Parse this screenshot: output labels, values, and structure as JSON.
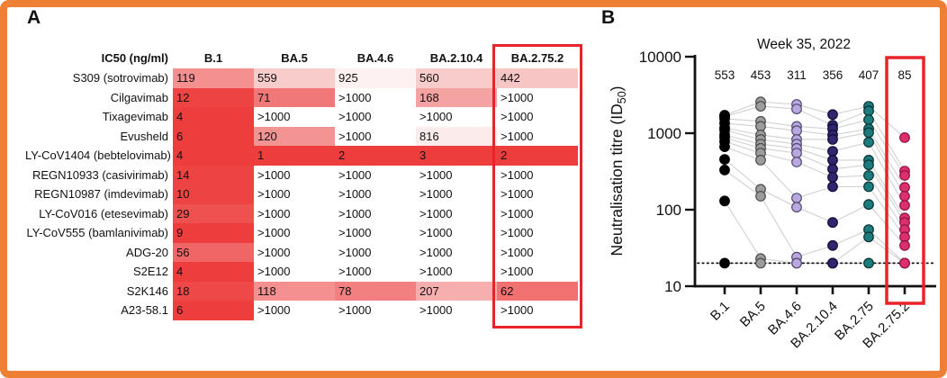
{
  "figure": {
    "panel_a_label": "A",
    "panel_b_label": "B",
    "border_color": "#ed8034",
    "highlight_color": "#e8232a"
  },
  "table": {
    "header_label": "IC50 (ng/ml)",
    "columns": [
      "B.1",
      "BA.5",
      "BA.4.6",
      "BA.2.10.4",
      "BA.2.75.2"
    ],
    "highlighted_column": "BA.2.75.2",
    "heat_scale": {
      "low_color": "#ee3d3d",
      "high_color": "#ffffff",
      "low_value": 1,
      "high_value": 1000
    },
    "rows": [
      {
        "label": "S309 (sotrovimab)",
        "cells": [
          {
            "v": "119",
            "c": "#f49090"
          },
          {
            "v": "559",
            "c": "#f9cccc"
          },
          {
            "v": "925",
            "c": "#fdf1f1"
          },
          {
            "v": "560",
            "c": "#f9cccc"
          },
          {
            "v": "442",
            "c": "#f8c5c5"
          }
        ]
      },
      {
        "label": "Cilgavimab",
        "cells": [
          {
            "v": "12",
            "c": "#ee4343"
          },
          {
            "v": "71",
            "c": "#f17878"
          },
          {
            "v": ">1000",
            "c": "#ffffff"
          },
          {
            "v": "168",
            "c": "#f5a2a2"
          },
          {
            "v": ">1000",
            "c": "#ffffff"
          }
        ]
      },
      {
        "label": "Tixagevimab",
        "cells": [
          {
            "v": "4",
            "c": "#ee3d3d"
          },
          {
            "v": ">1000",
            "c": "#ffffff"
          },
          {
            "v": ">1000",
            "c": "#ffffff"
          },
          {
            "v": ">1000",
            "c": "#ffffff"
          },
          {
            "v": ">1000",
            "c": "#ffffff"
          }
        ]
      },
      {
        "label": "Evusheld",
        "cells": [
          {
            "v": "6",
            "c": "#ee3d3d"
          },
          {
            "v": "120",
            "c": "#f49393"
          },
          {
            "v": ">1000",
            "c": "#ffffff"
          },
          {
            "v": "816",
            "c": "#fcebeb"
          },
          {
            "v": ">1000",
            "c": "#ffffff"
          }
        ]
      },
      {
        "label": "LY-CoV1404 (bebtelovimab)",
        "cells": [
          {
            "v": "4",
            "c": "#ee3d3d"
          },
          {
            "v": "1",
            "c": "#ee3d3d"
          },
          {
            "v": "2",
            "c": "#ee3d3d"
          },
          {
            "v": "3",
            "c": "#ee3d3d"
          },
          {
            "v": "2",
            "c": "#ee3d3d"
          }
        ]
      },
      {
        "label": "REGN10933 (casivirimab)",
        "cells": [
          {
            "v": "14",
            "c": "#ee4343"
          },
          {
            "v": ">1000",
            "c": "#ffffff"
          },
          {
            "v": ">1000",
            "c": "#ffffff"
          },
          {
            "v": ">1000",
            "c": "#ffffff"
          },
          {
            "v": ">1000",
            "c": "#ffffff"
          }
        ]
      },
      {
        "label": "REGN10987 (imdevimab)",
        "cells": [
          {
            "v": "10",
            "c": "#ee4343"
          },
          {
            "v": ">1000",
            "c": "#ffffff"
          },
          {
            "v": ">1000",
            "c": "#ffffff"
          },
          {
            "v": ">1000",
            "c": "#ffffff"
          },
          {
            "v": ">1000",
            "c": "#ffffff"
          }
        ]
      },
      {
        "label": "LY-CoV016 (etesevimab)",
        "cells": [
          {
            "v": "29",
            "c": "#ef5151"
          },
          {
            "v": ">1000",
            "c": "#ffffff"
          },
          {
            "v": ">1000",
            "c": "#ffffff"
          },
          {
            "v": ">1000",
            "c": "#ffffff"
          },
          {
            "v": ">1000",
            "c": "#ffffff"
          }
        ]
      },
      {
        "label": "LY-CoV555 (bamlanivimab)",
        "cells": [
          {
            "v": "9",
            "c": "#ee3d3d"
          },
          {
            "v": ">1000",
            "c": "#ffffff"
          },
          {
            "v": ">1000",
            "c": "#ffffff"
          },
          {
            "v": ">1000",
            "c": "#ffffff"
          },
          {
            "v": ">1000",
            "c": "#ffffff"
          }
        ]
      },
      {
        "label": "ADG-20",
        "cells": [
          {
            "v": "56",
            "c": "#f06666"
          },
          {
            "v": ">1000",
            "c": "#ffffff"
          },
          {
            "v": ">1000",
            "c": "#ffffff"
          },
          {
            "v": ">1000",
            "c": "#ffffff"
          },
          {
            "v": ">1000",
            "c": "#ffffff"
          }
        ]
      },
      {
        "label": "S2E12",
        "cells": [
          {
            "v": "4",
            "c": "#ee3d3d"
          },
          {
            "v": ">1000",
            "c": "#ffffff"
          },
          {
            "v": ">1000",
            "c": "#ffffff"
          },
          {
            "v": ">1000",
            "c": "#ffffff"
          },
          {
            "v": ">1000",
            "c": "#ffffff"
          }
        ]
      },
      {
        "label": "S2K146",
        "cells": [
          {
            "v": "18",
            "c": "#ee4848"
          },
          {
            "v": "118",
            "c": "#f49090"
          },
          {
            "v": "78",
            "c": "#f28080"
          },
          {
            "v": "207",
            "c": "#f6aeae"
          },
          {
            "v": "62",
            "c": "#f17070"
          }
        ]
      },
      {
        "label": "A23-58.1",
        "cells": [
          {
            "v": "6",
            "c": "#ee3d3d"
          },
          {
            "v": ">1000",
            "c": "#ffffff"
          },
          {
            "v": ">1000",
            "c": "#ffffff"
          },
          {
            "v": ">1000",
            "c": "#ffffff"
          },
          {
            "v": ">1000",
            "c": "#ffffff"
          }
        ]
      }
    ]
  },
  "chart_data": {
    "type": "scatter",
    "title": "Week 35, 2022",
    "ylabel_main": "Neutralisation titre (ID",
    "ylabel_sub": "50",
    "ylabel_close": ")",
    "yscale": "log",
    "ylim": [
      10,
      10000
    ],
    "yticks": [
      10,
      100,
      1000,
      10000
    ],
    "detection_limit": 20,
    "grid": false,
    "categories": [
      "B.1",
      "BA.5",
      "BA.4.6",
      "BA.2.10.4",
      "BA.2.75",
      "BA.2.75.2"
    ],
    "geometric_mean_titres": [
      "553",
      "453",
      "311",
      "356",
      "407",
      "85"
    ],
    "highlighted_category": "BA.2.75.2",
    "series_colors": [
      {
        "label": "B.1",
        "fill": "#000000",
        "stroke": "#000000"
      },
      {
        "label": "BA.5",
        "fill": "#9c9c9c",
        "stroke": "#4b4b4b"
      },
      {
        "label": "BA.4.6",
        "fill": "#b9a7e2",
        "stroke": "#524a6b"
      },
      {
        "label": "BA.2.10.4",
        "fill": "#2f266f",
        "stroke": "#100d33"
      },
      {
        "label": "BA.2.75",
        "fill": "#1b7b7d",
        "stroke": "#0b3233"
      },
      {
        "label": "BA.2.75.2",
        "fill": "#dd2f6e",
        "stroke": "#8c1340"
      }
    ],
    "samples": [
      [
        1720,
        2570,
        2380,
        1750,
        2250,
        875
      ],
      [
        1650,
        2250,
        2070,
        1270,
        1960,
        320
      ],
      [
        1550,
        1430,
        1230,
        1140,
        1500,
        280
      ],
      [
        1350,
        1230,
        1080,
        950,
        1140,
        196
      ],
      [
        1175,
        950,
        830,
        830,
        1020,
        150
      ],
      [
        1100,
        830,
        720,
        580,
        760,
        114
      ],
      [
        950,
        720,
        635,
        445,
        445,
        78
      ],
      [
        875,
        635,
        550,
        340,
        385,
        68
      ],
      [
        780,
        550,
        420,
        265,
        280,
        55
      ],
      [
        665,
        445,
        142,
        200,
        200,
        44
      ],
      [
        455,
        185,
        108,
        68,
        117,
        34
      ],
      [
        330,
        150,
        24,
        34,
        55,
        20
      ],
      [
        130,
        23,
        20,
        20,
        44,
        20
      ],
      [
        20,
        20,
        20,
        20,
        20,
        20
      ]
    ]
  }
}
